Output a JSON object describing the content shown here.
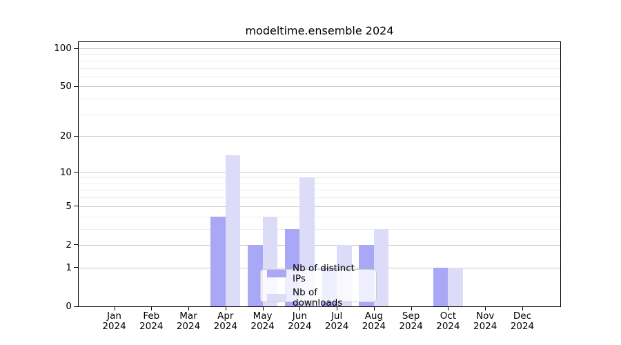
{
  "title": "modeltime.ensemble 2024",
  "chart_data": {
    "type": "bar",
    "title": "modeltime.ensemble 2024",
    "year": "2024",
    "months": [
      "Jan",
      "Feb",
      "Mar",
      "Apr",
      "May",
      "Jun",
      "Jul",
      "Aug",
      "Sep",
      "Oct",
      "Nov",
      "Dec"
    ],
    "series": [
      {
        "name": "Nb of distinct IPs",
        "color": "#a8a8f7",
        "values": [
          0,
          0,
          0,
          4,
          2,
          3,
          1,
          2,
          0,
          1,
          0,
          0
        ]
      },
      {
        "name": "Nb of downloads",
        "color": "#dcdcf9",
        "values": [
          0,
          0,
          0,
          14,
          4,
          9,
          2,
          3,
          0,
          1,
          0,
          0
        ]
      }
    ],
    "yscale": "log1p",
    "ylim": [
      0,
      113
    ],
    "yticks_major": [
      0,
      1,
      2,
      5,
      10,
      20,
      50,
      100
    ],
    "yticks_minor": [
      3,
      4,
      6,
      7,
      8,
      9,
      30,
      40,
      60,
      70,
      80,
      90
    ],
    "grid": true,
    "legend_position": "lower-center inside plot"
  },
  "colors": {
    "background": "#ffffff",
    "axis": "#000000",
    "grid_major": "#c9c9c9",
    "grid_minor": "#ececec",
    "legend_border": "#cccccc",
    "text": "#000000"
  }
}
